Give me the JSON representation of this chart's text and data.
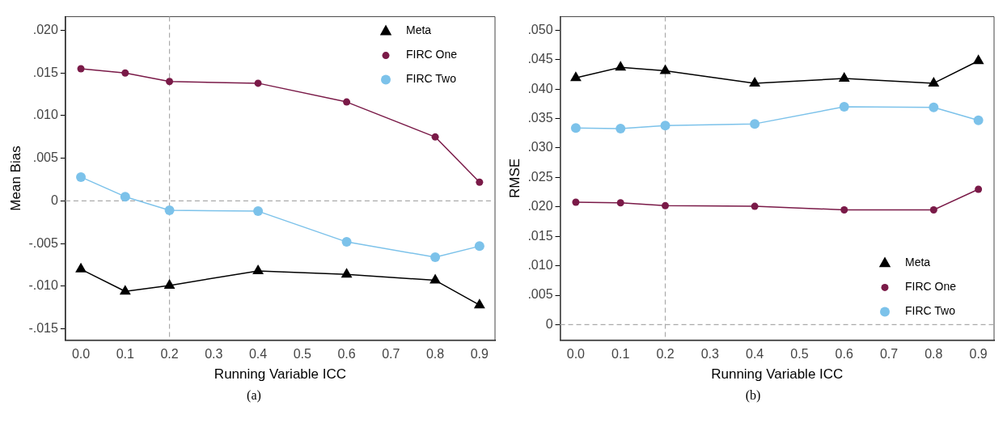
{
  "chart_data": [
    {
      "type": "line",
      "xlabel": "Running Variable ICC",
      "ylabel": "Mean Bias",
      "x": [
        0,
        0.1,
        0.2,
        0.4,
        0.6,
        0.8,
        0.9
      ],
      "xlim": [
        -0.035,
        0.935
      ],
      "xticks": [
        {
          "value": 0,
          "label": "0.0"
        },
        0.1,
        0.2,
        0.3,
        0.4,
        0.5,
        0.6,
        0.7,
        0.8,
        0.9
      ],
      "ylim": [
        -0.0163,
        0.0216
      ],
      "yticks": [
        {
          "value": -0.015,
          "label": "-.015"
        },
        {
          "value": -0.01,
          "label": "-.010"
        },
        {
          "value": -0.005,
          "label": "-.005"
        },
        0,
        {
          "value": 0.005,
          "label": ".005"
        },
        {
          "value": 0.01,
          "label": ".010"
        },
        {
          "value": 0.015,
          "label": ".015"
        },
        {
          "value": 0.02,
          "label": ".020"
        }
      ],
      "series": [
        {
          "name": "Meta",
          "color": "#000000",
          "marker": "triangle",
          "values": [
            -0.008,
            -0.0106,
            -0.0099,
            -0.0082,
            -0.0086,
            -0.0093,
            -0.0122
          ]
        },
        {
          "name": "FIRC One",
          "color": "#7a1a48",
          "marker": "circle",
          "values": [
            0.0155,
            0.015,
            0.014,
            0.0138,
            0.0116,
            0.0075,
            0.0022
          ]
        },
        {
          "name": "FIRC Two",
          "color": "#7cc2ea",
          "marker": "circle",
          "values": [
            0.0028,
            0.0005,
            -0.0011,
            -0.0012,
            -0.0048,
            -0.0066,
            -0.0053
          ]
        }
      ],
      "ref_lines": [
        {
          "axis": "x",
          "value": 0.2,
          "color": "#aaaaaa",
          "line_style": "dashed"
        },
        {
          "axis": "y",
          "value": 0,
          "color": "#aaaaaa",
          "line_style": "dashed"
        }
      ],
      "grid": false,
      "legend": "top right",
      "line_style": "solid",
      "annotations": [
        "(a)"
      ]
    },
    {
      "type": "line",
      "xlabel": "Running Variable ICC",
      "ylabel": "RMSE",
      "x": [
        0,
        0.1,
        0.2,
        0.4,
        0.6,
        0.8,
        0.9
      ],
      "xlim": [
        -0.035,
        0.935
      ],
      "xticks": [
        {
          "value": 0,
          "label": "0.0"
        },
        0.1,
        0.2,
        0.3,
        0.4,
        0.5,
        0.6,
        0.7,
        0.8,
        0.9
      ],
      "ylim": [
        -0.0026,
        0.0523
      ],
      "yticks": [
        0,
        {
          "value": 0.005,
          "label": ".005"
        },
        {
          "value": 0.01,
          "label": ".010"
        },
        {
          "value": 0.015,
          "label": ".015"
        },
        {
          "value": 0.02,
          "label": ".020"
        },
        {
          "value": 0.025,
          "label": ".025"
        },
        {
          "value": 0.03,
          "label": ".030"
        },
        {
          "value": 0.035,
          "label": ".035"
        },
        {
          "value": 0.04,
          "label": ".040"
        },
        {
          "value": 0.045,
          "label": ".045"
        },
        {
          "value": 0.05,
          "label": ".050"
        }
      ],
      "series": [
        {
          "name": "Meta",
          "color": "#000000",
          "marker": "triangle",
          "values": [
            0.0419,
            0.0437,
            0.0431,
            0.041,
            0.0418,
            0.041,
            0.0448
          ]
        },
        {
          "name": "FIRC One",
          "color": "#7a1a48",
          "marker": "circle",
          "values": [
            0.0208,
            0.0207,
            0.0202,
            0.0201,
            0.0195,
            0.0195,
            0.023
          ]
        },
        {
          "name": "FIRC Two",
          "color": "#7cc2ea",
          "marker": "circle",
          "values": [
            0.0334,
            0.0333,
            0.0338,
            0.0341,
            0.037,
            0.0369,
            0.0347
          ]
        }
      ],
      "ref_lines": [
        {
          "axis": "x",
          "value": 0.2,
          "color": "#aaaaaa",
          "line_style": "dashed"
        },
        {
          "axis": "y",
          "value": 0,
          "color": "#aaaaaa",
          "line_style": "dashed"
        }
      ],
      "grid": false,
      "legend": "bottom right",
      "line_style": "solid",
      "annotations": [
        "(b)"
      ]
    }
  ]
}
